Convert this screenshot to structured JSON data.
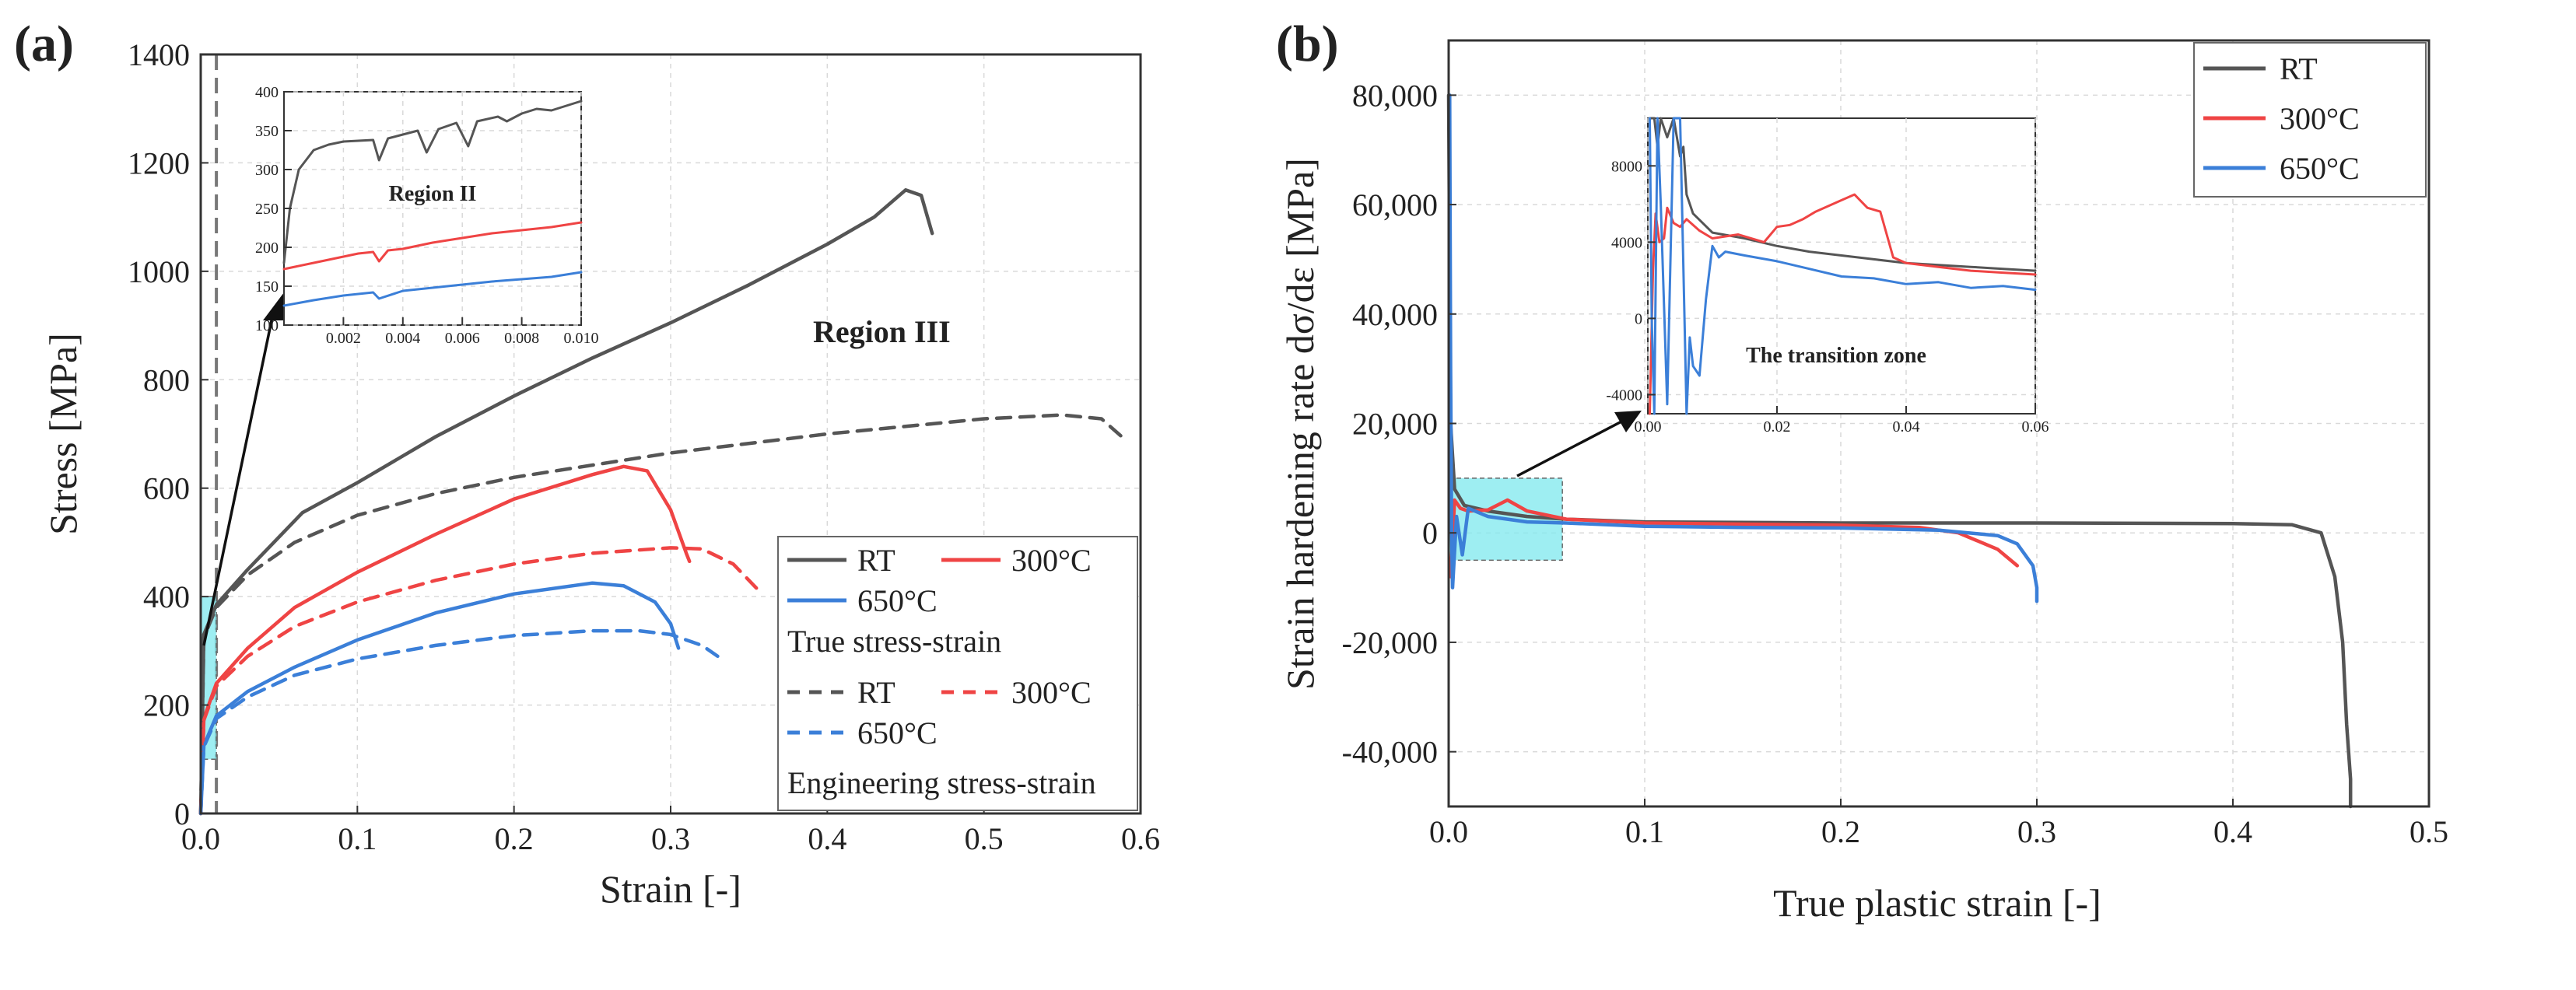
{
  "figure": {
    "colors": {
      "rt": "#555555",
      "t300": "#ef4444",
      "t650": "#3b7fd8",
      "highlight": "#7ee8ee",
      "grid": "#d9d9d9",
      "axis": "#333333"
    }
  },
  "chart_data": [
    {
      "id": "a",
      "panel_label": "(a)",
      "type": "line",
      "xlabel": "Strain [-]",
      "ylabel": "Stress [MPa]",
      "xlim": [
        0,
        0.6
      ],
      "ylim": [
        0,
        1400
      ],
      "x_ticks": [
        "0.0",
        "0.1",
        "0.2",
        "0.3",
        "0.4",
        "0.5",
        "0.6"
      ],
      "y_ticks": [
        "0",
        "200",
        "400",
        "600",
        "800",
        "1000",
        "1200",
        "1400"
      ],
      "grid": true,
      "annotation": "Region III",
      "legend": {
        "placement": "bottom-right",
        "true_header": "True stress-strain",
        "engineering_header": "Engineering stress-strain",
        "true_entries": [
          "RT",
          "300°C",
          "650°C"
        ],
        "engineering_entries": [
          "RT",
          "300°C",
          "650°C"
        ]
      },
      "series": [
        {
          "name": "RT",
          "group": "True stress-strain",
          "color_key": "rt",
          "dash": false,
          "x": [
            0,
            0.002,
            0.01,
            0.03,
            0.065,
            0.1,
            0.15,
            0.2,
            0.25,
            0.3,
            0.35,
            0.4,
            0.43,
            0.45,
            0.46,
            0.467
          ],
          "y": [
            0,
            330,
            385,
            450,
            555,
            610,
            695,
            770,
            840,
            905,
            975,
            1050,
            1100,
            1150,
            1140,
            1070
          ]
        },
        {
          "name": "300°C",
          "group": "True stress-strain",
          "color_key": "t300",
          "dash": false,
          "x": [
            0,
            0.002,
            0.01,
            0.03,
            0.06,
            0.1,
            0.15,
            0.2,
            0.25,
            0.27,
            0.285,
            0.3,
            0.31,
            0.312
          ],
          "y": [
            0,
            175,
            240,
            305,
            380,
            445,
            515,
            580,
            625,
            640,
            632,
            560,
            480,
            465
          ]
        },
        {
          "name": "650°C",
          "group": "True stress-strain",
          "color_key": "t650",
          "dash": false,
          "x": [
            0,
            0.002,
            0.01,
            0.03,
            0.06,
            0.1,
            0.15,
            0.2,
            0.25,
            0.27,
            0.29,
            0.3,
            0.305
          ],
          "y": [
            0,
            125,
            180,
            225,
            270,
            320,
            370,
            405,
            425,
            420,
            390,
            350,
            305
          ]
        },
        {
          "name": "RT",
          "group": "Engineering stress-strain",
          "color_key": "rt",
          "dash": true,
          "x": [
            0,
            0.002,
            0.01,
            0.03,
            0.06,
            0.1,
            0.15,
            0.2,
            0.3,
            0.4,
            0.5,
            0.55,
            0.575,
            0.59
          ],
          "y": [
            0,
            325,
            380,
            440,
            500,
            550,
            590,
            620,
            665,
            700,
            728,
            735,
            728,
            690
          ]
        },
        {
          "name": "300°C",
          "group": "Engineering stress-strain",
          "color_key": "t300",
          "dash": true,
          "x": [
            0,
            0.002,
            0.01,
            0.03,
            0.06,
            0.1,
            0.15,
            0.2,
            0.25,
            0.3,
            0.32,
            0.34,
            0.355
          ],
          "y": [
            0,
            172,
            235,
            290,
            345,
            390,
            430,
            460,
            480,
            490,
            488,
            460,
            415
          ]
        },
        {
          "name": "650°C",
          "group": "Engineering stress-strain",
          "color_key": "t650",
          "dash": true,
          "x": [
            0,
            0.002,
            0.01,
            0.03,
            0.06,
            0.1,
            0.15,
            0.2,
            0.25,
            0.28,
            0.3,
            0.32,
            0.33
          ],
          "y": [
            0,
            123,
            175,
            215,
            255,
            285,
            310,
            328,
            337,
            337,
            330,
            310,
            290
          ]
        }
      ],
      "inset": {
        "title": "Region II",
        "xlim": [
          0,
          0.01
        ],
        "ylim": [
          100,
          400
        ],
        "x_ticks": [
          "0.002",
          "0.004",
          "0.006",
          "0.008",
          "0.010"
        ],
        "y_ticks": [
          "100",
          "150",
          "200",
          "250",
          "300",
          "350",
          "400"
        ],
        "source_x_range": [
          0,
          0.01
        ],
        "source_y_range": [
          100,
          400
        ],
        "series": [
          {
            "name": "RT",
            "color_key": "rt",
            "x": [
              0,
              0.0002,
              0.0005,
              0.001,
              0.0015,
              0.002,
              0.0025,
              0.003,
              0.0032,
              0.0035,
              0.004,
              0.0045,
              0.0048,
              0.0052,
              0.0058,
              0.0062,
              0.0065,
              0.0072,
              0.0075,
              0.008,
              0.0085,
              0.009,
              0.0095,
              0.01
            ],
            "y": [
              180,
              250,
              300,
              325,
              332,
              336,
              337,
              338,
              312,
              340,
              345,
              350,
              322,
              352,
              360,
              330,
              362,
              368,
              362,
              372,
              378,
              376,
              382,
              388
            ]
          },
          {
            "name": "300°C",
            "color_key": "t300",
            "x": [
              0,
              0.001,
              0.002,
              0.0025,
              0.003,
              0.0032,
              0.0035,
              0.004,
              0.005,
              0.006,
              0.007,
              0.008,
              0.009,
              0.01
            ],
            "y": [
              172,
              180,
              188,
              192,
              194,
              182,
              196,
              198,
              206,
              212,
              218,
              222,
              226,
              232
            ]
          },
          {
            "name": "650°C",
            "color_key": "t650",
            "x": [
              0,
              0.001,
              0.002,
              0.003,
              0.0032,
              0.004,
              0.005,
              0.006,
              0.007,
              0.008,
              0.009,
              0.01
            ],
            "y": [
              125,
              132,
              138,
              142,
              134,
              144,
              148,
              152,
              156,
              159,
              162,
              168
            ]
          }
        ]
      }
    },
    {
      "id": "b",
      "panel_label": "(b)",
      "type": "line",
      "xlabel": "True plastic strain [-]",
      "ylabel": "Strain hardening rate dσ/dε [MPa]",
      "xlim": [
        0,
        0.5
      ],
      "ylim": [
        -50000,
        90000
      ],
      "x_ticks": [
        "0.0",
        "0.1",
        "0.2",
        "0.3",
        "0.4",
        "0.5"
      ],
      "y_ticks": [
        "-40,000",
        "-20,000",
        "0",
        "20,000",
        "40,000",
        "60,000",
        "80,000"
      ],
      "grid": true,
      "legend": {
        "placement": "top-right",
        "entries": [
          "RT",
          "300°C",
          "650°C"
        ]
      },
      "series": [
        {
          "name": "RT",
          "color_key": "rt",
          "x": [
            0,
            0.001,
            0.003,
            0.008,
            0.02,
            0.04,
            0.06,
            0.1,
            0.2,
            0.3,
            0.4,
            0.43,
            0.445,
            0.452,
            0.456,
            0.458,
            0.46,
            0.46
          ],
          "y": [
            80000,
            20000,
            8000,
            5000,
            4000,
            3000,
            2500,
            2000,
            1800,
            1800,
            1700,
            1500,
            0,
            -8000,
            -20000,
            -35000,
            -45000,
            -50000
          ]
        },
        {
          "name": "300°C",
          "color_key": "t300",
          "x": [
            0.001,
            0.003,
            0.006,
            0.01,
            0.02,
            0.03,
            0.04,
            0.06,
            0.1,
            0.15,
            0.2,
            0.24,
            0.26,
            0.28,
            0.29
          ],
          "y": [
            -8000,
            6000,
            4500,
            4000,
            4200,
            6000,
            4000,
            2500,
            1800,
            1600,
            1400,
            1000,
            0,
            -3000,
            -6000
          ]
        },
        {
          "name": "650°C",
          "color_key": "t650",
          "x": [
            0.0005,
            0.001,
            0.0015,
            0.002,
            0.004,
            0.007,
            0.01,
            0.02,
            0.04,
            0.06,
            0.1,
            0.15,
            0.2,
            0.25,
            0.28,
            0.29,
            0.298,
            0.3,
            0.3
          ],
          "y": [
            80000,
            30000,
            0,
            -10000,
            3000,
            -4000,
            4500,
            3000,
            2000,
            1800,
            1200,
            1000,
            900,
            500,
            -500,
            -2000,
            -6000,
            -10000,
            -12500
          ]
        }
      ],
      "inset": {
        "title": "The transition zone",
        "xlim": [
          0,
          0.06
        ],
        "ylim": [
          -5000,
          10500
        ],
        "x_ticks": [
          "0.00",
          "0.02",
          "0.04",
          "0.06"
        ],
        "y_ticks": [
          "-4000",
          "0",
          "4000",
          "8000"
        ],
        "source_x_range": [
          0,
          0.058
        ],
        "source_y_range": [
          -5000,
          10000
        ],
        "series": [
          {
            "name": "RT",
            "color_key": "rt",
            "x": [
              0.0003,
              0.001,
              0.0015,
              0.002,
              0.003,
              0.004,
              0.005,
              0.0055,
              0.006,
              0.007,
              0.01,
              0.015,
              0.02,
              0.025,
              0.03,
              0.035,
              0.04,
              0.045,
              0.05,
              0.055,
              0.06
            ],
            "y": [
              10500,
              10500,
              9000,
              10500,
              9500,
              10500,
              8500,
              9000,
              6500,
              5500,
              4500,
              4200,
              3800,
              3500,
              3300,
              3100,
              2900,
              2800,
              2700,
              2600,
              2500
            ]
          },
          {
            "name": "300°C",
            "color_key": "t300",
            "x": [
              0.0003,
              0.0008,
              0.0012,
              0.0018,
              0.0025,
              0.003,
              0.004,
              0.005,
              0.006,
              0.008,
              0.01,
              0.014,
              0.018,
              0.02,
              0.022,
              0.024,
              0.026,
              0.028,
              0.03,
              0.032,
              0.034,
              0.036,
              0.038,
              0.04,
              0.045,
              0.05,
              0.055,
              0.06
            ],
            "y": [
              -5000,
              2500,
              5500,
              4000,
              4200,
              5800,
              5000,
              4800,
              5200,
              4600,
              4200,
              4400,
              4000,
              4800,
              4900,
              5200,
              5600,
              5900,
              6200,
              6500,
              5800,
              5600,
              3200,
              2900,
              2700,
              2500,
              2400,
              2300
            ]
          },
          {
            "name": "650°C",
            "color_key": "t650",
            "x": [
              0.0003,
              0.0006,
              0.001,
              0.0015,
              0.002,
              0.003,
              0.004,
              0.005,
              0.006,
              0.0065,
              0.007,
              0.008,
              0.009,
              0.01,
              0.011,
              0.012,
              0.015,
              0.02,
              0.025,
              0.03,
              0.035,
              0.04,
              0.045,
              0.05,
              0.055,
              0.06
            ],
            "y": [
              10500,
              0,
              -5000,
              10500,
              6000,
              -4500,
              10500,
              10500,
              -5000,
              -1000,
              -2500,
              -3000,
              1000,
              3800,
              3200,
              3500,
              3300,
              3000,
              2600,
              2200,
              2100,
              1800,
              1900,
              1600,
              1700,
              1500
            ]
          }
        ]
      }
    }
  ]
}
